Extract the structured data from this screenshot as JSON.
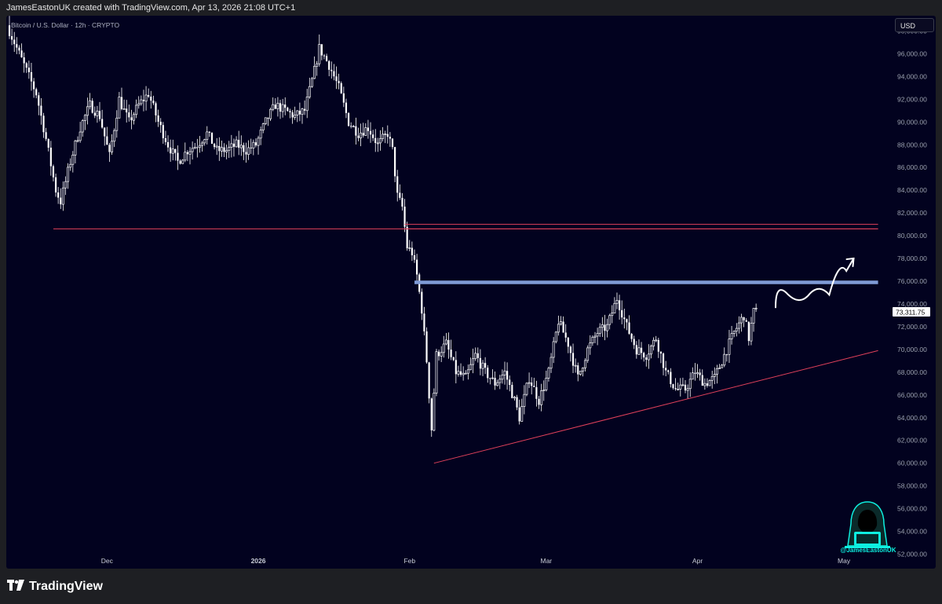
{
  "header": {
    "attribution": "JamesEastonUK created with TradingView.com, Apr 13, 2026 21:08 UTC+1"
  },
  "chart_header": {
    "symbol": "Bitcoin / U.S. Dollar · 12h · CRYPTO",
    "currency": "USD"
  },
  "footer": {
    "brand": "TradingView",
    "logo_icon": "tradingview-logo-icon"
  },
  "watermark": {
    "handle": "@JamesEastonUK",
    "icon": "hooded-hacker-avatar-icon"
  },
  "colors": {
    "background": "#02021f",
    "candle": "#ffffff",
    "support_line": "#e0405a",
    "resistance_band": "#7f9bd6",
    "price_badge_bg": "#ffffff"
  },
  "chart_data": {
    "type": "candlestick",
    "title": "Bitcoin / U.S. Dollar · 12h · CRYPTO",
    "ylabel": "USD",
    "ylim": [
      51000,
      99000
    ],
    "y_ticks": [
      "98,000.00",
      "96,000.00",
      "94,000.00",
      "92,000.00",
      "90,000.00",
      "88,000.00",
      "86,000.00",
      "84,000.00",
      "82,000.00",
      "80,000.00",
      "78,000.00",
      "76,000.00",
      "74,000.00",
      "72,000.00",
      "70,000.00",
      "68,000.00",
      "66,000.00",
      "64,000.00",
      "62,000.00",
      "60,000.00",
      "58,000.00",
      "56,000.00",
      "54,000.00",
      "52,000.00"
    ],
    "x_ticks": [
      {
        "label": "Dec",
        "date": "2025-12-01"
      },
      {
        "label": "2026",
        "date": "2026-01-01"
      },
      {
        "label": "Feb",
        "date": "2026-02-01"
      },
      {
        "label": "Mar",
        "date": "2026-03-01"
      },
      {
        "label": "Apr",
        "date": "2026-04-01"
      },
      {
        "label": "May",
        "date": "2026-05-01"
      }
    ],
    "x_range": [
      "2025-11-11",
      "2026-05-10"
    ],
    "last_price": "73,311.75",
    "path": [
      [
        "2025-11-11",
        98500
      ],
      [
        "2025-11-13",
        96500
      ],
      [
        "2025-11-15",
        94500
      ],
      [
        "2025-11-17",
        92500
      ],
      [
        "2025-11-19",
        88500
      ],
      [
        "2025-11-21",
        84000
      ],
      [
        "2025-11-22",
        83000
      ],
      [
        "2025-11-24",
        86500
      ],
      [
        "2025-11-26",
        89500
      ],
      [
        "2025-11-28",
        91500
      ],
      [
        "2025-11-30",
        90500
      ],
      [
        "2025-12-02",
        87000
      ],
      [
        "2025-12-04",
        92000
      ],
      [
        "2025-12-06",
        90000
      ],
      [
        "2025-12-08",
        91500
      ],
      [
        "2025-12-10",
        92500
      ],
      [
        "2025-12-12",
        90000
      ],
      [
        "2025-12-14",
        88000
      ],
      [
        "2025-12-16",
        86500
      ],
      [
        "2025-12-18",
        87500
      ],
      [
        "2025-12-20",
        88000
      ],
      [
        "2025-12-22",
        89000
      ],
      [
        "2025-12-24",
        87500
      ],
      [
        "2025-12-26",
        87500
      ],
      [
        "2025-12-28",
        88000
      ],
      [
        "2025-12-30",
        87500
      ],
      [
        "2026-01-01",
        88000
      ],
      [
        "2026-01-03",
        90000
      ],
      [
        "2026-01-05",
        91500
      ],
      [
        "2026-01-07",
        91000
      ],
      [
        "2026-01-09",
        90500
      ],
      [
        "2026-01-11",
        91000
      ],
      [
        "2026-01-13",
        94500
      ],
      [
        "2026-01-14",
        96500
      ],
      [
        "2026-01-16",
        95000
      ],
      [
        "2026-01-18",
        93000
      ],
      [
        "2026-01-20",
        90000
      ],
      [
        "2026-01-22",
        89000
      ],
      [
        "2026-01-24",
        89500
      ],
      [
        "2026-01-26",
        88000
      ],
      [
        "2026-01-28",
        89000
      ],
      [
        "2026-01-29",
        87500
      ],
      [
        "2026-01-30",
        83500
      ],
      [
        "2026-01-31",
        82500
      ],
      [
        "2026-02-01",
        79000
      ],
      [
        "2026-02-02",
        78500
      ],
      [
        "2026-02-03",
        76500
      ],
      [
        "2026-02-04",
        73500
      ],
      [
        "2026-02-05",
        69000
      ],
      [
        "2026-02-06",
        63000
      ],
      [
        "2026-02-07",
        69500
      ],
      [
        "2026-02-09",
        70500
      ],
      [
        "2026-02-11",
        68000
      ],
      [
        "2026-02-13",
        67500
      ],
      [
        "2026-02-15",
        69500
      ],
      [
        "2026-02-17",
        68000
      ],
      [
        "2026-02-19",
        67000
      ],
      [
        "2026-02-21",
        68000
      ],
      [
        "2026-02-23",
        65500
      ],
      [
        "2026-02-24",
        64000
      ],
      [
        "2026-02-26",
        67500
      ],
      [
        "2026-02-28",
        65500
      ],
      [
        "2026-03-02",
        68000
      ],
      [
        "2026-03-04",
        72500
      ],
      [
        "2026-03-06",
        70500
      ],
      [
        "2026-03-08",
        67500
      ],
      [
        "2026-03-10",
        70000
      ],
      [
        "2026-03-12",
        71500
      ],
      [
        "2026-03-14",
        72000
      ],
      [
        "2026-03-16",
        74500
      ],
      [
        "2026-03-18",
        72000
      ],
      [
        "2026-03-20",
        70000
      ],
      [
        "2026-03-22",
        69500
      ],
      [
        "2026-03-24",
        71000
      ],
      [
        "2026-03-26",
        68000
      ],
      [
        "2026-03-28",
        66500
      ],
      [
        "2026-03-30",
        66500
      ],
      [
        "2026-04-01",
        68000
      ],
      [
        "2026-04-03",
        67000
      ],
      [
        "2026-04-05",
        67500
      ],
      [
        "2026-04-07",
        69500
      ],
      [
        "2026-04-09",
        71500
      ],
      [
        "2026-04-11",
        73000
      ],
      [
        "2026-04-12",
        71000
      ],
      [
        "2026-04-13",
        73300
      ]
    ],
    "annotations": [
      {
        "type": "horizontal_line",
        "name": "support-2025",
        "y": 80600,
        "from": "2025-11-20",
        "to": "2026-05-08",
        "color": "#e0405a"
      },
      {
        "type": "horizontal_line",
        "name": "resistance-upper-a",
        "y": 81000,
        "from": "2026-01-31",
        "to": "2026-05-08",
        "color": "#e0405a"
      },
      {
        "type": "horizontal_line",
        "name": "resistance-upper-b",
        "y": 80600,
        "from": "2026-01-31",
        "to": "2026-05-08",
        "color": "#e0405a"
      },
      {
        "type": "horizontal_band",
        "name": "resistance-75900",
        "y": 75900,
        "from": "2026-02-02",
        "to": "2026-05-08",
        "color": "#7f9bd6"
      },
      {
        "type": "trend_line",
        "name": "rising-support",
        "points": [
          [
            "2026-02-06",
            60000
          ],
          [
            "2026-05-08",
            69900
          ]
        ],
        "color": "#e0405a"
      },
      {
        "type": "path",
        "name": "projection-arrow",
        "points": [
          [
            "2026-04-17",
            73700
          ],
          [
            "2026-04-22",
            76000
          ],
          [
            "2026-04-26",
            73800
          ],
          [
            "2026-04-30",
            75800
          ],
          [
            "2026-05-03",
            78000
          ]
        ],
        "color": "#ffffff"
      }
    ]
  }
}
